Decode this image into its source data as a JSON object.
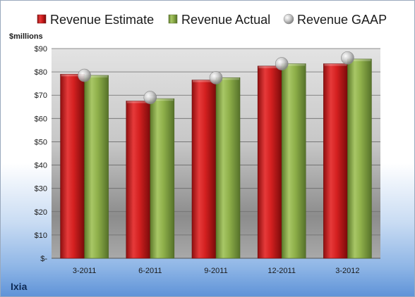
{
  "chart_data": {
    "type": "bar",
    "unit_label": "$millions",
    "company": "Ixia",
    "categories": [
      "3-2011",
      "6-2011",
      "9-2011",
      "12-2011",
      "3-2012"
    ],
    "series": [
      {
        "name": "Revenue Estimate",
        "kind": "bar",
        "color": "#d42020",
        "values": [
          79,
          67.5,
          76.5,
          82.5,
          83.5
        ]
      },
      {
        "name": "Revenue Actual",
        "kind": "bar",
        "color": "#8fb04a",
        "values": [
          78.5,
          68.5,
          77.5,
          83.5,
          85.5
        ]
      },
      {
        "name": "Revenue GAAP",
        "kind": "marker",
        "color": "#b0b0b0",
        "values": [
          78.5,
          69,
          77.5,
          83.5,
          86
        ]
      }
    ],
    "y_ticks": [
      "$-",
      "$10",
      "$20",
      "$30",
      "$40",
      "$50",
      "$60",
      "$70",
      "$80",
      "$90"
    ],
    "ylim": [
      0,
      90
    ],
    "grid": true,
    "legend_position": "top"
  }
}
